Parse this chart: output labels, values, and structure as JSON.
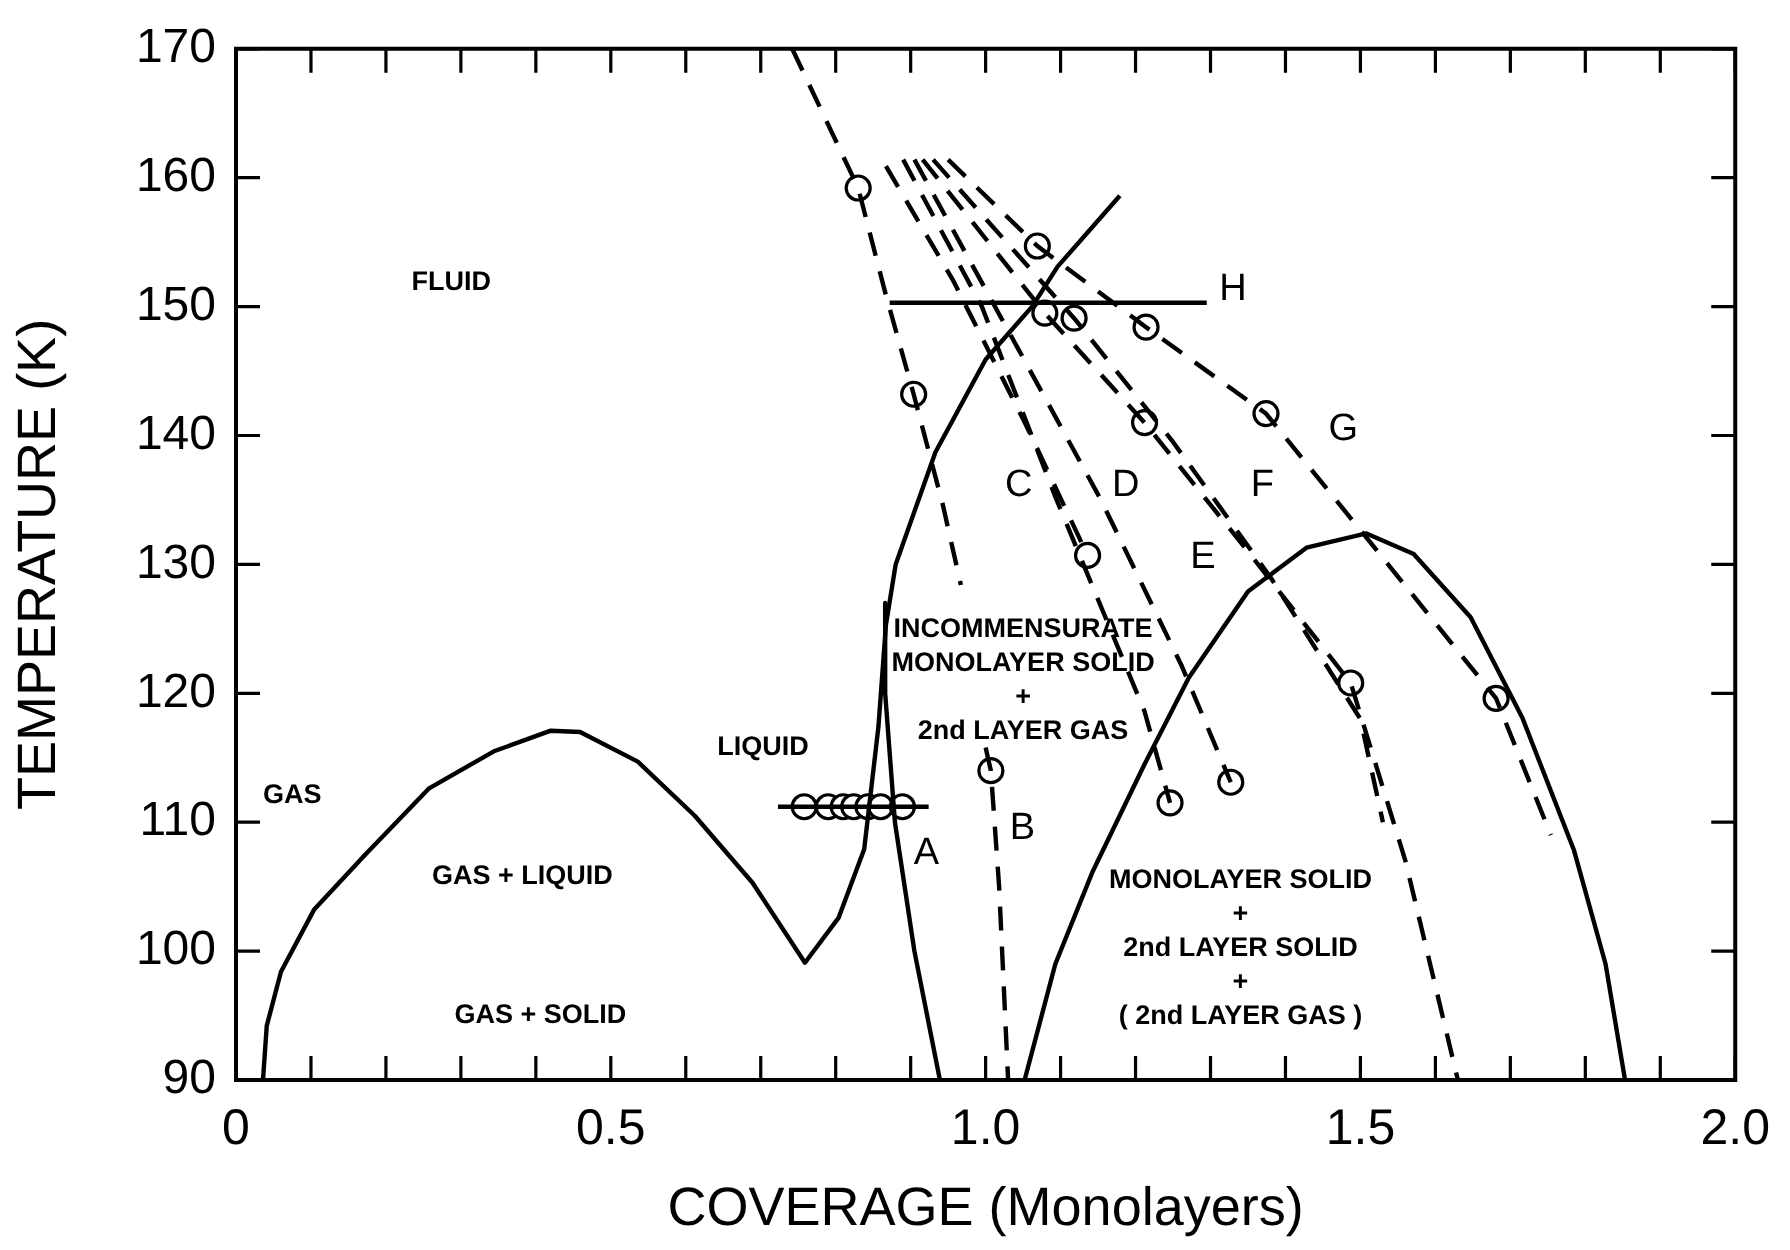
{
  "chart_data": {
    "type": "line",
    "xlabel": "COVERAGE (Monolayers)",
    "ylabel": "TEMPERATURE (K)",
    "xlim": [
      0,
      2.0
    ],
    "ylim": [
      90,
      170
    ],
    "xticks": [
      {
        "value": 0,
        "label": "0"
      },
      {
        "value": 0.1,
        "label": null
      },
      {
        "value": 0.2,
        "label": null
      },
      {
        "value": 0.3,
        "label": null
      },
      {
        "value": 0.4,
        "label": null
      },
      {
        "value": 0.5,
        "label": "0.5"
      },
      {
        "value": 0.6,
        "label": null
      },
      {
        "value": 0.7,
        "label": null
      },
      {
        "value": 0.8,
        "label": null
      },
      {
        "value": 0.9,
        "label": null
      },
      {
        "value": 1.0,
        "label": "1.0"
      },
      {
        "value": 1.1,
        "label": null
      },
      {
        "value": 1.2,
        "label": null
      },
      {
        "value": 1.3,
        "label": null
      },
      {
        "value": 1.4,
        "label": null
      },
      {
        "value": 1.5,
        "label": "1.5"
      },
      {
        "value": 1.6,
        "label": null
      },
      {
        "value": 1.7,
        "label": null
      },
      {
        "value": 1.8,
        "label": null
      },
      {
        "value": 1.9,
        "label": null
      },
      {
        "value": 2.0,
        "label": "2.0"
      }
    ],
    "yticks": [
      90,
      100,
      110,
      120,
      130,
      140,
      150,
      160,
      170
    ],
    "marker": "none",
    "grid": false,
    "series": [
      {
        "type": "line",
        "color": "#000000",
        "line_style": "solid",
        "x": [
          0.036,
          0.041,
          0.06,
          0.104,
          0.171,
          0.257,
          0.344,
          0.42,
          0.459,
          0.536,
          0.612,
          0.689,
          0.759,
          0.804,
          0.838,
          0.857,
          0.867,
          0.88,
          0.933,
          1.0,
          1.062,
          1.096,
          1.179
        ],
        "values": [
          90,
          94.2,
          98.4,
          103.2,
          107.4,
          112.6,
          115.5,
          117.1,
          117,
          114.7,
          110.5,
          105.3,
          99.1,
          102.6,
          107.9,
          117.4,
          125.3,
          130,
          138.7,
          145.9,
          150,
          153.1,
          158.6
        ]
      },
      {
        "type": "line",
        "color": "#000000",
        "line_style": "solid",
        "x": [
          0.866,
          0.866,
          0.879,
          0.905,
          0.939
        ],
        "values": [
          127,
          120,
          110,
          100,
          90
        ]
      },
      {
        "type": "line",
        "color": "#000000",
        "line_style": "solid",
        "x": [
          1.052,
          1.093,
          1.143,
          1.212,
          1.271,
          1.35,
          1.428,
          1.508,
          1.571,
          1.647,
          1.716,
          1.785,
          1.827,
          1.853
        ],
        "values": [
          90,
          99,
          106.2,
          114.5,
          121.2,
          127.9,
          131.3,
          132.4,
          130.8,
          125.9,
          118.1,
          107.8,
          99,
          90
        ]
      },
      {
        "type": "line",
        "color": "#000000",
        "line_style": "solid",
        "x": [
          0.723,
          0.924
        ],
        "values": [
          111.2,
          111.2
        ]
      },
      {
        "type": "line",
        "color": "#000000",
        "line_style": "solid",
        "x": [
          0.872,
          1.295
        ],
        "values": [
          150.3,
          150.3
        ]
      },
      {
        "type": "line",
        "color": "#000000",
        "line_style": "dashed",
        "x": [
          0.742,
          0.83,
          0.866,
          0.904,
          0.943,
          0.967
        ],
        "values": [
          170,
          159.2,
          151.1,
          143.2,
          134.6,
          128.4
        ]
      },
      {
        "type": "line",
        "color": "#000000",
        "line_style": "dashed",
        "x": [
          1.0,
          1.007,
          1.018,
          1.03
        ],
        "values": [
          115.8,
          114,
          105,
          90
        ]
      },
      {
        "type": "line",
        "color": "#000000",
        "line_style": "dashed",
        "x": [
          0.867,
          0.956,
          1.054,
          1.136
        ],
        "values": [
          160.9,
          152.1,
          140.8,
          130.7
        ]
      },
      {
        "type": "line",
        "color": "#000000",
        "line_style": "dashed",
        "x": [
          0.89,
          0.995,
          1.094,
          1.212,
          1.246
        ],
        "values": [
          161.4,
          150,
          135.1,
          118.6,
          111.5
        ]
      },
      {
        "type": "line",
        "color": "#000000",
        "line_style": "dashed",
        "x": [
          0.905,
          1.153,
          1.261,
          1.327
        ],
        "values": [
          161.4,
          135.1,
          122.2,
          113.1
        ]
      },
      {
        "type": "line",
        "color": "#000000",
        "line_style": "dashed",
        "x": [
          0.916,
          1.079,
          1.212,
          1.35,
          1.487,
          1.56,
          1.63
        ],
        "values": [
          161.4,
          149.5,
          141,
          131,
          120.8,
          107,
          90
        ]
      },
      {
        "type": "line",
        "color": "#000000",
        "line_style": "dashed",
        "x": [
          0.93,
          1.118,
          1.25,
          1.38,
          1.5,
          1.53
        ],
        "values": [
          161.4,
          149.1,
          139.5,
          129,
          118,
          110
        ]
      },
      {
        "type": "line",
        "color": "#000000",
        "line_style": "dashed",
        "x": [
          0.95,
          1.069,
          1.214,
          1.374,
          1.53,
          1.681,
          1.754
        ],
        "values": [
          161.4,
          154.7,
          148.4,
          141.7,
          130.5,
          119.6,
          109
        ]
      },
      {
        "type": "scatter",
        "color": "#000000",
        "marker": "circle",
        "x": [
          0.83,
          0.904,
          1.069,
          1.079,
          1.118,
          1.214,
          1.212,
          1.136,
          1.374,
          1.487,
          1.681,
          1.007,
          1.246,
          1.327,
          0.758,
          0.79,
          0.81,
          0.824,
          0.843,
          0.86,
          0.889
        ],
        "values": [
          159.2,
          143.2,
          154.7,
          149.5,
          149.1,
          148.4,
          141,
          130.7,
          141.7,
          120.8,
          119.6,
          114,
          111.5,
          113.1,
          111.2,
          111.2,
          111.2,
          111.2,
          111.2,
          111.2,
          111.2
        ]
      }
    ],
    "annotations": [
      "FLUID",
      "GAS",
      "GAS + LIQUID",
      "GAS + SOLID",
      "LIQUID",
      "INCOMMENSURATE\nMONOLAYER SOLID\n+\n2nd LAYER GAS",
      "MONOLAYER SOLID\n+\n2nd LAYER SOLID\n+\n( 2nd LAYER GAS )",
      "A",
      "B",
      "C",
      "D",
      "E",
      "F",
      "G",
      "H"
    ]
  }
}
